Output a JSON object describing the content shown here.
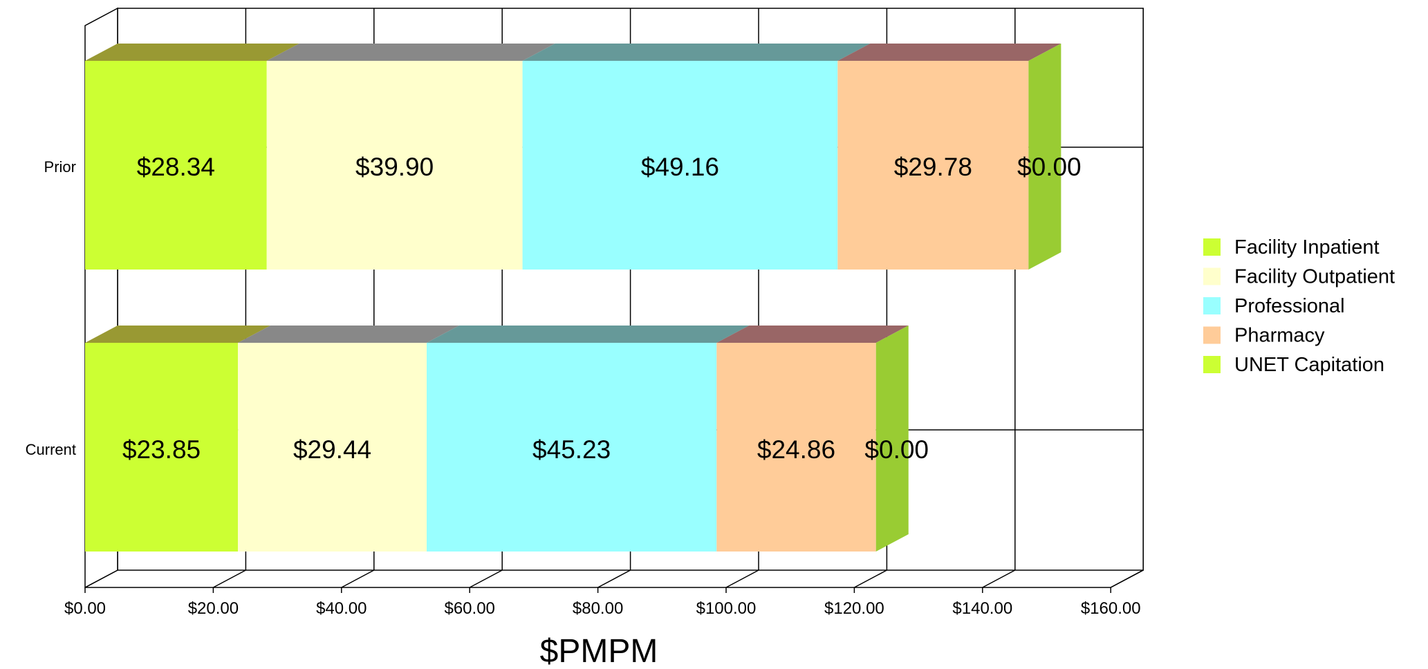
{
  "chart_data": {
    "type": "bar",
    "orientation": "horizontal",
    "stacked": true,
    "three_d": true,
    "categories": [
      "Prior",
      "Current"
    ],
    "series": [
      {
        "name": "Facility Inpatient",
        "values": [
          28.34,
          23.85
        ],
        "labels": [
          "$28.34",
          "$23.85"
        ],
        "color": "#ccff33",
        "top_color": "#999933"
      },
      {
        "name": "Facility Outpatient",
        "values": [
          39.9,
          29.44
        ],
        "labels": [
          "$39.90",
          "$29.44"
        ],
        "color": "#ffffcc",
        "top_color": "#888888"
      },
      {
        "name": "Professional",
        "values": [
          49.16,
          45.23
        ],
        "labels": [
          "$49.16",
          "$45.23"
        ],
        "color": "#99ffff",
        "top_color": "#669999"
      },
      {
        "name": "Pharmacy",
        "values": [
          29.78,
          24.86
        ],
        "labels": [
          "$29.78",
          "$24.86"
        ],
        "color": "#ffcc99",
        "top_color": "#996666"
      },
      {
        "name": "UNET Capitation",
        "values": [
          0.0,
          0.0
        ],
        "labels": [
          "$0.00",
          "$0.00"
        ],
        "color": "#ccff33",
        "top_color": "#999933"
      }
    ],
    "end_face_color": "#99cc33",
    "xlabel": "$PMPM",
    "ylabel": "",
    "xlim": [
      0,
      160
    ],
    "xticks": [
      0,
      20,
      40,
      60,
      80,
      100,
      120,
      140,
      160
    ],
    "xtick_labels": [
      "$0.00",
      "$20.00",
      "$40.00",
      "$60.00",
      "$80.00",
      "$100.00",
      "$120.00",
      "$140.00",
      "$160.00"
    ],
    "grid": true,
    "legend_position": "right"
  }
}
